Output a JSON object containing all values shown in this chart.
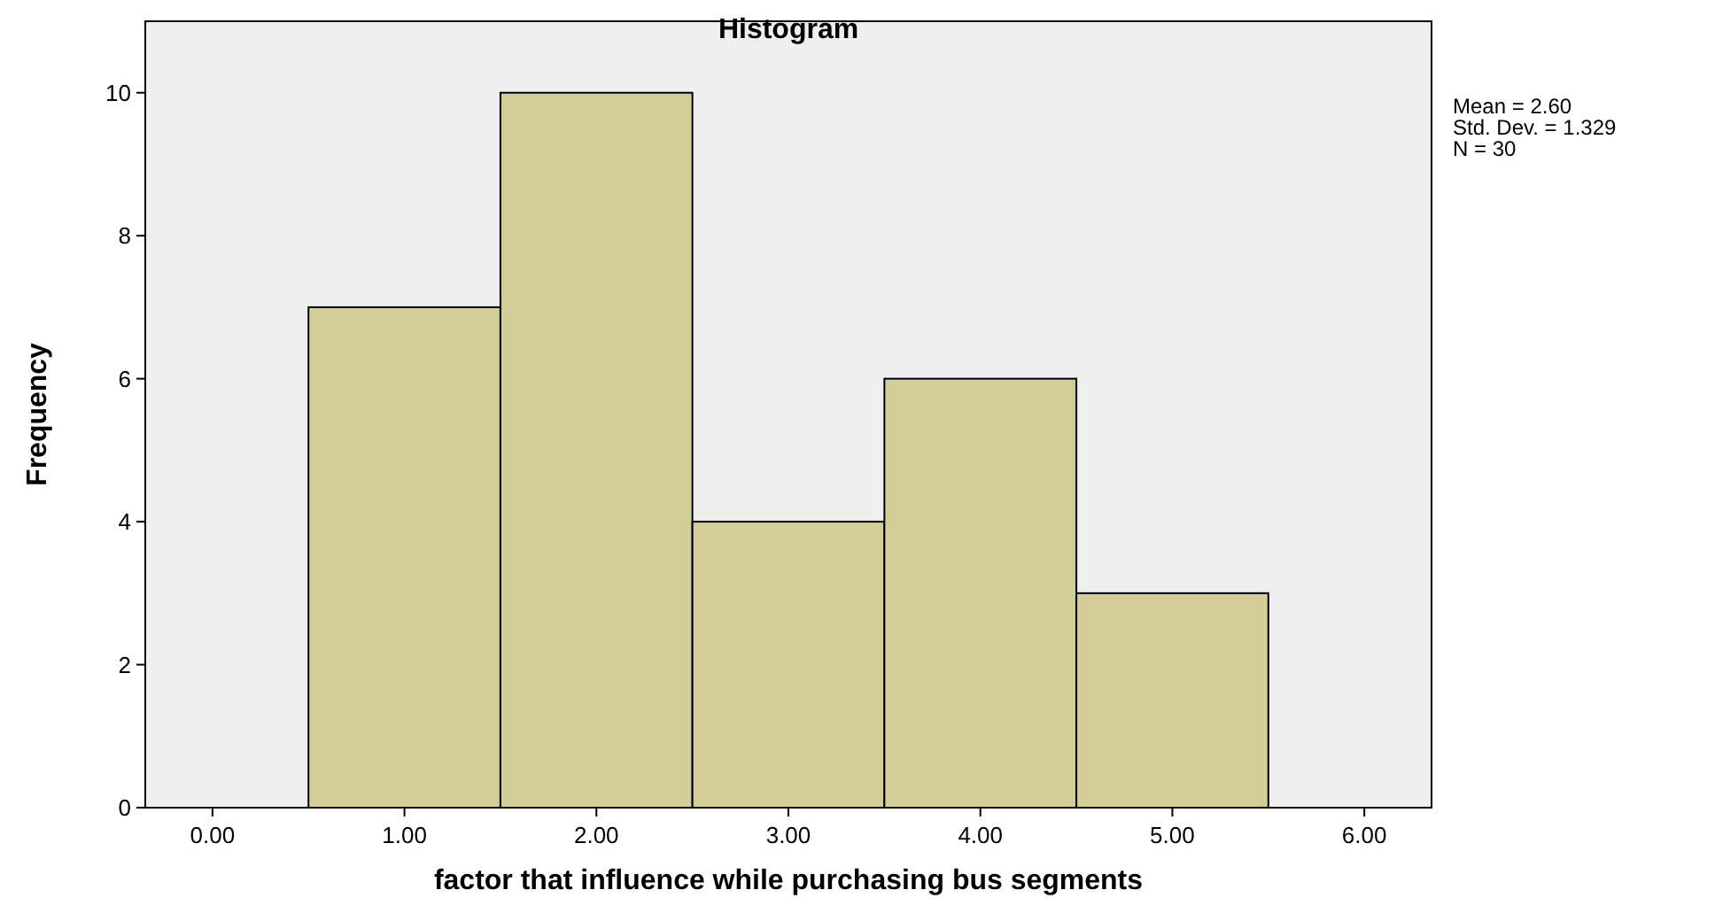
{
  "chart_data": {
    "type": "histogram",
    "title": "Histogram",
    "xlabel": "factor  that influence while purchasing bus segments",
    "ylabel": "Frequency",
    "bins": [
      0.5,
      1.5,
      2.5,
      3.5,
      4.5,
      5.5
    ],
    "values": [
      7,
      10,
      4,
      6,
      3
    ],
    "color": "#d3cd98",
    "xlim": [
      -0.35,
      6.35
    ],
    "xticks": [
      {
        "value": 0,
        "label": "0.00"
      },
      {
        "value": 1,
        "label": "1.00"
      },
      {
        "value": 2,
        "label": "2.00"
      },
      {
        "value": 3,
        "label": "3.00"
      },
      {
        "value": 4,
        "label": "4.00"
      },
      {
        "value": 5,
        "label": "5.00"
      },
      {
        "value": 6,
        "label": "6.00"
      }
    ],
    "ylim": [
      0,
      11
    ],
    "yticks": [
      0,
      2,
      4,
      6,
      8,
      10
    ],
    "grid": false,
    "annotations": [
      "Mean = 2.60",
      "Std. Dev. = 1.329",
      "N = 30"
    ]
  }
}
